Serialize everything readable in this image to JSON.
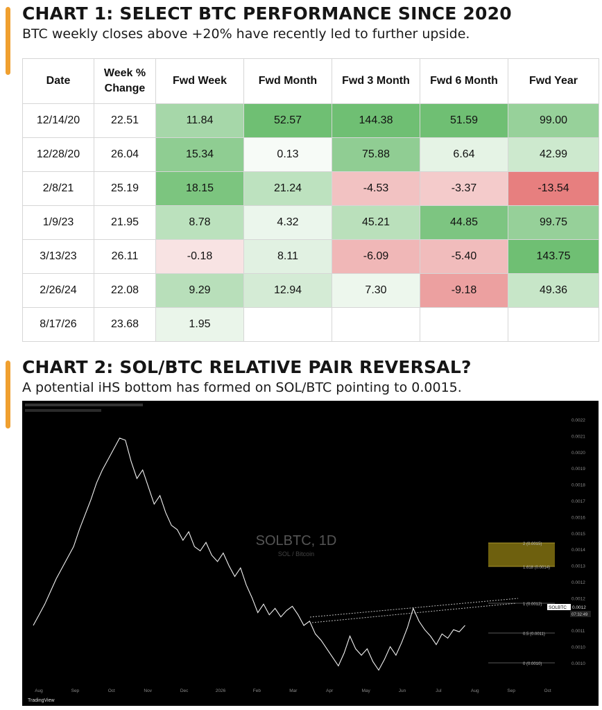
{
  "chart1": {
    "title": "CHART 1: SELECT BTC PERFORMANCE SINCE 2020",
    "subtitle": "BTC weekly closes above +20% have recently led to further upside."
  },
  "chart2": {
    "title": "CHART 2: SOL/BTC RELATIVE PAIR REVERSAL?",
    "subtitle": "A potential iHS bottom has formed on SOL/BTC pointing to 0.0015."
  },
  "chart_data": [
    {
      "type": "table",
      "title": "CHART 1: SELECT BTC PERFORMANCE SINCE 2020",
      "columns": [
        "Date",
        "Week % Change",
        "Fwd Week",
        "Fwd Month",
        "Fwd 3 Month",
        "Fwd 6 Month",
        "Fwd Year"
      ],
      "rows": [
        [
          "12/14/20",
          "22.51",
          "11.84",
          "52.57",
          "144.38",
          "51.59",
          "99.00"
        ],
        [
          "12/28/20",
          "26.04",
          "15.34",
          "0.13",
          "75.88",
          "6.64",
          "42.99"
        ],
        [
          "2/8/21",
          "25.19",
          "18.15",
          "21.24",
          "-4.53",
          "-3.37",
          "-13.54"
        ],
        [
          "1/9/23",
          "21.95",
          "8.78",
          "4.32",
          "45.21",
          "44.85",
          "99.75"
        ],
        [
          "3/13/23",
          "26.11",
          "-0.18",
          "8.11",
          "-6.09",
          "-5.40",
          "143.75"
        ],
        [
          "2/26/24",
          "22.08",
          "9.29",
          "12.94",
          "7.30",
          "-9.18",
          "49.36"
        ],
        [
          "8/17/26",
          "23.68",
          "1.95",
          "",
          "",
          "",
          ""
        ]
      ],
      "colors": {
        "pos_strong": "#6fbf73",
        "pos_light": "#e6f3e6",
        "neg_strong": "#e67c7c",
        "neg_light": "#f8e4e4"
      }
    },
    {
      "type": "line",
      "watermark_symbol": "SOLBTC, 1D",
      "watermark_name": "SOL / Bitcoin",
      "brand": "TradingView",
      "x_ticks": [
        "Aug",
        "Sep",
        "Oct",
        "Nov",
        "Dec",
        "2026",
        "Feb",
        "Mar",
        "Apr",
        "May",
        "Jun",
        "Jul",
        "Aug",
        "Sep",
        "Oct"
      ],
      "y_ticks": [
        "0.0022",
        "0.0021",
        "0.0020",
        "0.0019",
        "0.0018",
        "0.0017",
        "0.0016",
        "0.0015",
        "0.0014",
        "0.0013",
        "0.0012",
        "0.0012",
        "0.0011",
        "0.0011",
        "0.0010",
        "0.0010"
      ],
      "fib_levels": [
        {
          "label": "2 (0.0015)",
          "value": 0.0015
        },
        {
          "label": "1.618 (0.0014)",
          "value": 0.0014
        },
        {
          "label": "1 (0.0012)",
          "value": 0.0012
        },
        {
          "label": "0.5 (0.0011)",
          "value": 0.0011
        },
        {
          "label": "0 (0.0010)",
          "value": 0.001
        }
      ],
      "price_tag": {
        "symbol": "SOLBTC",
        "value": "0.0012",
        "countdown": "07:32:49"
      },
      "series": [
        {
          "points": [
            [
              0,
              0.00123
            ],
            [
              2,
              0.00128
            ],
            [
              4,
              0.00133
            ],
            [
              6,
              0.00139
            ],
            [
              8,
              0.00145
            ],
            [
              10,
              0.0015
            ],
            [
              12,
              0.00155
            ],
            [
              14,
              0.0016
            ],
            [
              16,
              0.00168
            ],
            [
              18,
              0.00175
            ],
            [
              20,
              0.00182
            ],
            [
              22,
              0.0019
            ],
            [
              24,
              0.00196
            ],
            [
              26,
              0.00201
            ],
            [
              28,
              0.00206
            ],
            [
              30,
              0.00211
            ],
            [
              32,
              0.0021
            ],
            [
              34,
              0.002
            ],
            [
              36,
              0.00192
            ],
            [
              38,
              0.00196
            ],
            [
              40,
              0.00188
            ],
            [
              42,
              0.0018
            ],
            [
              44,
              0.00184
            ],
            [
              46,
              0.00176
            ],
            [
              48,
              0.0017
            ],
            [
              50,
              0.00168
            ],
            [
              52,
              0.00163
            ],
            [
              54,
              0.00167
            ],
            [
              56,
              0.0016
            ],
            [
              58,
              0.00158
            ],
            [
              60,
              0.00162
            ],
            [
              62,
              0.00156
            ],
            [
              64,
              0.00153
            ],
            [
              66,
              0.00157
            ],
            [
              68,
              0.00151
            ],
            [
              70,
              0.00146
            ],
            [
              72,
              0.0015
            ],
            [
              74,
              0.00142
            ],
            [
              76,
              0.00136
            ],
            [
              78,
              0.00129
            ],
            [
              80,
              0.00133
            ],
            [
              82,
              0.00128
            ],
            [
              84,
              0.00131
            ],
            [
              86,
              0.00127
            ],
            [
              88,
              0.0013
            ],
            [
              90,
              0.00132
            ],
            [
              92,
              0.00128
            ],
            [
              94,
              0.00123
            ],
            [
              96,
              0.00125
            ],
            [
              98,
              0.00119
            ],
            [
              100,
              0.00116
            ],
            [
              102,
              0.00112
            ],
            [
              104,
              0.00108
            ],
            [
              106,
              0.00104
            ],
            [
              108,
              0.0011
            ],
            [
              110,
              0.00118
            ],
            [
              112,
              0.00112
            ],
            [
              114,
              0.00109
            ],
            [
              116,
              0.00112
            ],
            [
              118,
              0.00106
            ],
            [
              120,
              0.00102
            ],
            [
              122,
              0.00107
            ],
            [
              124,
              0.00113
            ],
            [
              126,
              0.00109
            ],
            [
              128,
              0.00115
            ],
            [
              130,
              0.00122
            ],
            [
              132,
              0.00131
            ],
            [
              134,
              0.00125
            ],
            [
              136,
              0.00121
            ],
            [
              138,
              0.00118
            ],
            [
              140,
              0.00114
            ],
            [
              142,
              0.00119
            ],
            [
              144,
              0.00117
            ],
            [
              146,
              0.00121
            ],
            [
              148,
              0.0012
            ],
            [
              150,
              0.00123
            ]
          ]
        }
      ]
    }
  ]
}
